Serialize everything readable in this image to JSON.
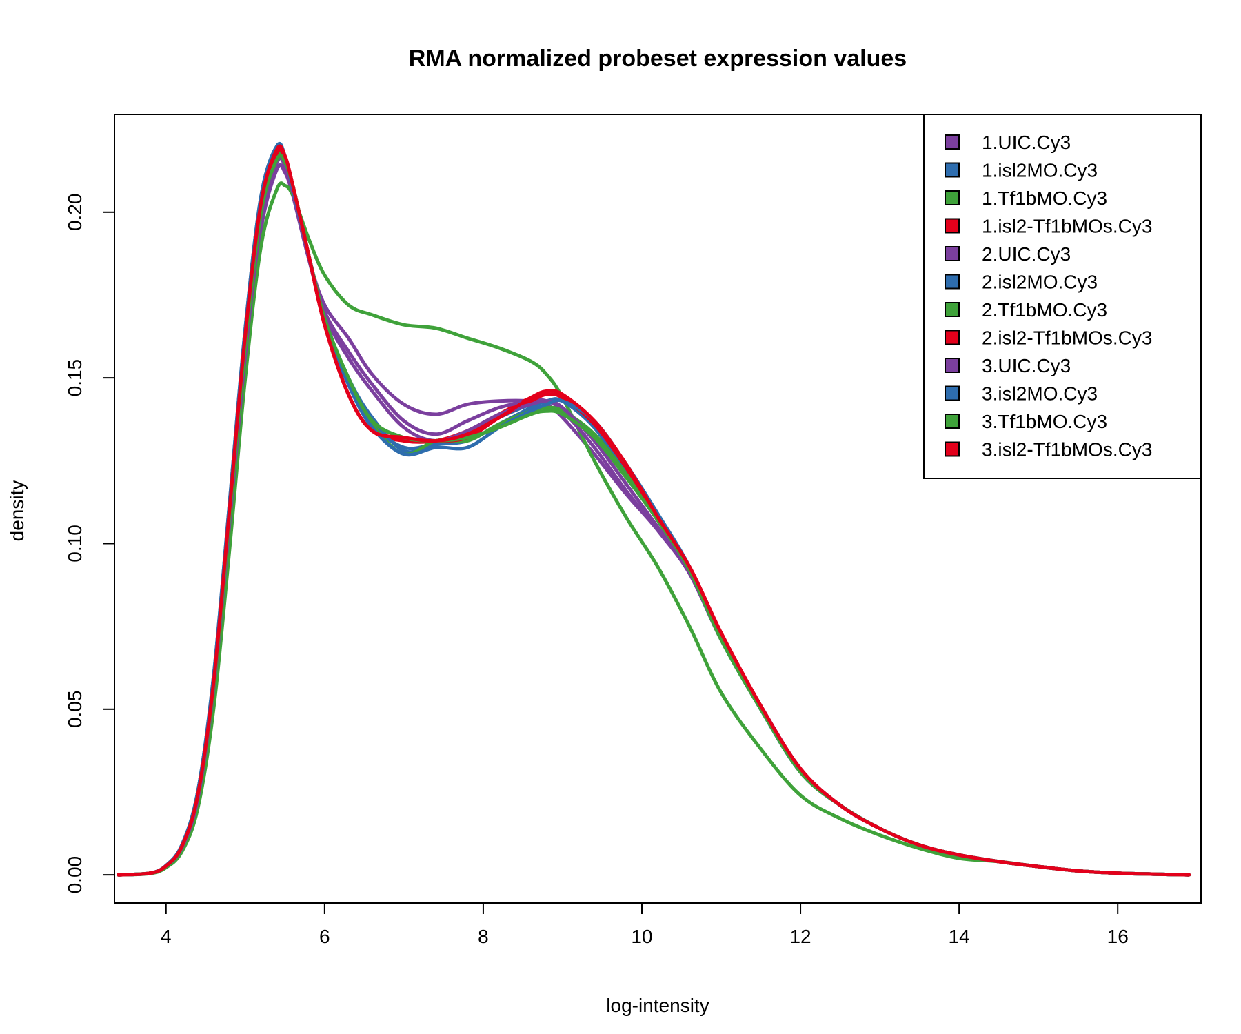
{
  "chart_data": {
    "type": "line",
    "title": "RMA normalized probeset expression values",
    "xlabel": "log-intensity",
    "ylabel": "density",
    "xlim": [
      3.35,
      17.05
    ],
    "ylim": [
      -0.0085,
      0.2295
    ],
    "x_ticks": [
      4,
      6,
      8,
      10,
      12,
      14,
      16
    ],
    "y_ticks": [
      0.0,
      0.05,
      0.1,
      0.15,
      0.2
    ],
    "x_tick_labels": [
      "4",
      "6",
      "8",
      "10",
      "12",
      "14",
      "16"
    ],
    "y_tick_labels": [
      "0.00",
      "0.05",
      "0.10",
      "0.15",
      "0.20"
    ],
    "grid": false,
    "legend_position": "top-right",
    "colors": {
      "purple": "#7B3F9E",
      "blue": "#2E6DAE",
      "green": "#3FA23A",
      "red": "#E3001B"
    },
    "x": [
      3.4,
      3.8,
      4.0,
      4.2,
      4.4,
      4.6,
      4.8,
      5.0,
      5.2,
      5.4,
      5.5,
      5.6,
      5.8,
      6.0,
      6.3,
      6.6,
      7.0,
      7.4,
      7.8,
      8.2,
      8.6,
      8.8,
      9.0,
      9.4,
      9.8,
      10.2,
      10.6,
      11.0,
      11.5,
      12.0,
      12.5,
      13.0,
      13.5,
      14.0,
      14.5,
      15.0,
      15.5,
      16.0,
      16.5,
      16.9
    ],
    "series": [
      {
        "name": "1.UIC.Cy3",
        "color": "#7B3F9E",
        "values": [
          0,
          0.0005,
          0.0025,
          0.008,
          0.022,
          0.055,
          0.105,
          0.155,
          0.195,
          0.213,
          0.212,
          0.205,
          0.186,
          0.172,
          0.162,
          0.151,
          0.142,
          0.139,
          0.142,
          0.143,
          0.143,
          0.142,
          0.138,
          0.127,
          0.115,
          0.104,
          0.091,
          0.071,
          0.05,
          0.031,
          0.021,
          0.014,
          0.009,
          0.006,
          0.004,
          0.0025,
          0.0012,
          0.0005,
          0.0002,
          0
        ]
      },
      {
        "name": "1.isl2MO.Cy3",
        "color": "#2E6DAE",
        "values": [
          0,
          0.0005,
          0.0028,
          0.009,
          0.025,
          0.06,
          0.112,
          0.165,
          0.205,
          0.22,
          0.216,
          0.207,
          0.187,
          0.168,
          0.15,
          0.138,
          0.128,
          0.13,
          0.133,
          0.138,
          0.142,
          0.143,
          0.143,
          0.136,
          0.122,
          0.108,
          0.092,
          0.071,
          0.05,
          0.031,
          0.021,
          0.014,
          0.009,
          0.006,
          0.004,
          0.0025,
          0.0012,
          0.0005,
          0.0002,
          0
        ]
      },
      {
        "name": "1.Tf1bMO.Cy3",
        "color": "#3FA23A",
        "values": [
          0,
          0.0004,
          0.0022,
          0.007,
          0.02,
          0.05,
          0.098,
          0.15,
          0.19,
          0.207,
          0.208,
          0.205,
          0.192,
          0.181,
          0.172,
          0.169,
          0.166,
          0.165,
          0.162,
          0.159,
          0.155,
          0.151,
          0.144,
          0.125,
          0.108,
          0.093,
          0.075,
          0.055,
          0.038,
          0.024,
          0.017,
          0.012,
          0.008,
          0.005,
          0.004,
          0.0025,
          0.0012,
          0.0005,
          0.0002,
          0
        ]
      },
      {
        "name": "1.isl2-Tf1bMOs.Cy3",
        "color": "#E3001B",
        "values": [
          0,
          0.0005,
          0.0027,
          0.0085,
          0.024,
          0.058,
          0.109,
          0.161,
          0.201,
          0.217,
          0.216,
          0.208,
          0.187,
          0.166,
          0.145,
          0.134,
          0.131,
          0.131,
          0.134,
          0.139,
          0.144,
          0.145,
          0.144,
          0.136,
          0.123,
          0.107,
          0.093,
          0.073,
          0.051,
          0.032,
          0.021,
          0.014,
          0.009,
          0.006,
          0.004,
          0.0025,
          0.0012,
          0.0005,
          0.0002,
          0
        ]
      },
      {
        "name": "2.UIC.Cy3",
        "color": "#7B3F9E",
        "values": [
          0,
          0.0005,
          0.0026,
          0.0082,
          0.023,
          0.056,
          0.106,
          0.157,
          0.197,
          0.215,
          0.214,
          0.206,
          0.186,
          0.17,
          0.158,
          0.148,
          0.137,
          0.133,
          0.137,
          0.141,
          0.143,
          0.143,
          0.14,
          0.129,
          0.116,
          0.104,
          0.091,
          0.071,
          0.05,
          0.031,
          0.021,
          0.014,
          0.009,
          0.006,
          0.004,
          0.0025,
          0.0012,
          0.0005,
          0.0002,
          0
        ]
      },
      {
        "name": "2.isl2MO.Cy3",
        "color": "#2E6DAE",
        "values": [
          0,
          0.0005,
          0.0028,
          0.009,
          0.025,
          0.059,
          0.111,
          0.164,
          0.204,
          0.219,
          0.216,
          0.207,
          0.187,
          0.168,
          0.149,
          0.136,
          0.129,
          0.13,
          0.131,
          0.136,
          0.141,
          0.143,
          0.143,
          0.135,
          0.121,
          0.107,
          0.092,
          0.071,
          0.05,
          0.031,
          0.021,
          0.014,
          0.009,
          0.006,
          0.004,
          0.0025,
          0.0012,
          0.0005,
          0.0002,
          0
        ]
      },
      {
        "name": "2.Tf1bMO.Cy3",
        "color": "#3FA23A",
        "values": [
          0,
          0.0005,
          0.0026,
          0.0085,
          0.024,
          0.057,
          0.108,
          0.16,
          0.2,
          0.217,
          0.216,
          0.208,
          0.187,
          0.168,
          0.149,
          0.136,
          0.127,
          0.131,
          0.131,
          0.136,
          0.14,
          0.141,
          0.14,
          0.133,
          0.121,
          0.107,
          0.092,
          0.071,
          0.05,
          0.031,
          0.021,
          0.014,
          0.009,
          0.006,
          0.004,
          0.0025,
          0.0012,
          0.0005,
          0.0002,
          0
        ]
      },
      {
        "name": "2.isl2-Tf1bMOs.Cy3",
        "color": "#E3001B",
        "values": [
          0,
          0.0005,
          0.0027,
          0.0085,
          0.024,
          0.058,
          0.11,
          0.162,
          0.202,
          0.218,
          0.216,
          0.208,
          0.187,
          0.166,
          0.145,
          0.134,
          0.132,
          0.131,
          0.132,
          0.138,
          0.143,
          0.145,
          0.144,
          0.136,
          0.123,
          0.108,
          0.093,
          0.073,
          0.051,
          0.032,
          0.021,
          0.014,
          0.009,
          0.006,
          0.004,
          0.0025,
          0.0012,
          0.0005,
          0.0002,
          0
        ]
      },
      {
        "name": "3.UIC.Cy3",
        "color": "#7B3F9E",
        "values": [
          0,
          0.0005,
          0.0026,
          0.0083,
          0.023,
          0.057,
          0.107,
          0.158,
          0.198,
          0.216,
          0.214,
          0.206,
          0.186,
          0.169,
          0.156,
          0.146,
          0.135,
          0.131,
          0.134,
          0.139,
          0.142,
          0.143,
          0.141,
          0.131,
          0.118,
          0.105,
          0.092,
          0.072,
          0.051,
          0.032,
          0.021,
          0.014,
          0.009,
          0.006,
          0.004,
          0.0025,
          0.0012,
          0.0005,
          0.0002,
          0
        ]
      },
      {
        "name": "3.isl2MO.Cy3",
        "color": "#2E6DAE",
        "values": [
          0,
          0.0005,
          0.0028,
          0.009,
          0.025,
          0.06,
          0.112,
          0.165,
          0.205,
          0.22,
          0.217,
          0.207,
          0.187,
          0.167,
          0.148,
          0.135,
          0.127,
          0.129,
          0.129,
          0.135,
          0.14,
          0.142,
          0.143,
          0.137,
          0.124,
          0.109,
          0.093,
          0.072,
          0.05,
          0.031,
          0.021,
          0.014,
          0.009,
          0.006,
          0.004,
          0.0025,
          0.0012,
          0.0005,
          0.0002,
          0
        ]
      },
      {
        "name": "3.Tf1bMO.Cy3",
        "color": "#3FA23A",
        "values": [
          0,
          0.0005,
          0.0026,
          0.0085,
          0.024,
          0.057,
          0.108,
          0.16,
          0.2,
          0.216,
          0.215,
          0.208,
          0.187,
          0.168,
          0.15,
          0.137,
          0.132,
          0.131,
          0.132,
          0.135,
          0.139,
          0.14,
          0.139,
          0.132,
          0.12,
          0.107,
          0.092,
          0.071,
          0.05,
          0.031,
          0.021,
          0.014,
          0.009,
          0.006,
          0.004,
          0.0025,
          0.0012,
          0.0005,
          0.0002,
          0
        ]
      },
      {
        "name": "3.isl2-Tf1bMOs.Cy3",
        "color": "#E3001B",
        "values": [
          0,
          0.0005,
          0.0027,
          0.0086,
          0.024,
          0.058,
          0.11,
          0.163,
          0.203,
          0.219,
          0.217,
          0.208,
          0.187,
          0.166,
          0.145,
          0.134,
          0.132,
          0.131,
          0.133,
          0.138,
          0.144,
          0.146,
          0.145,
          0.137,
          0.124,
          0.108,
          0.093,
          0.073,
          0.051,
          0.032,
          0.021,
          0.014,
          0.009,
          0.006,
          0.004,
          0.0025,
          0.0012,
          0.0005,
          0.0002,
          0
        ]
      }
    ]
  }
}
